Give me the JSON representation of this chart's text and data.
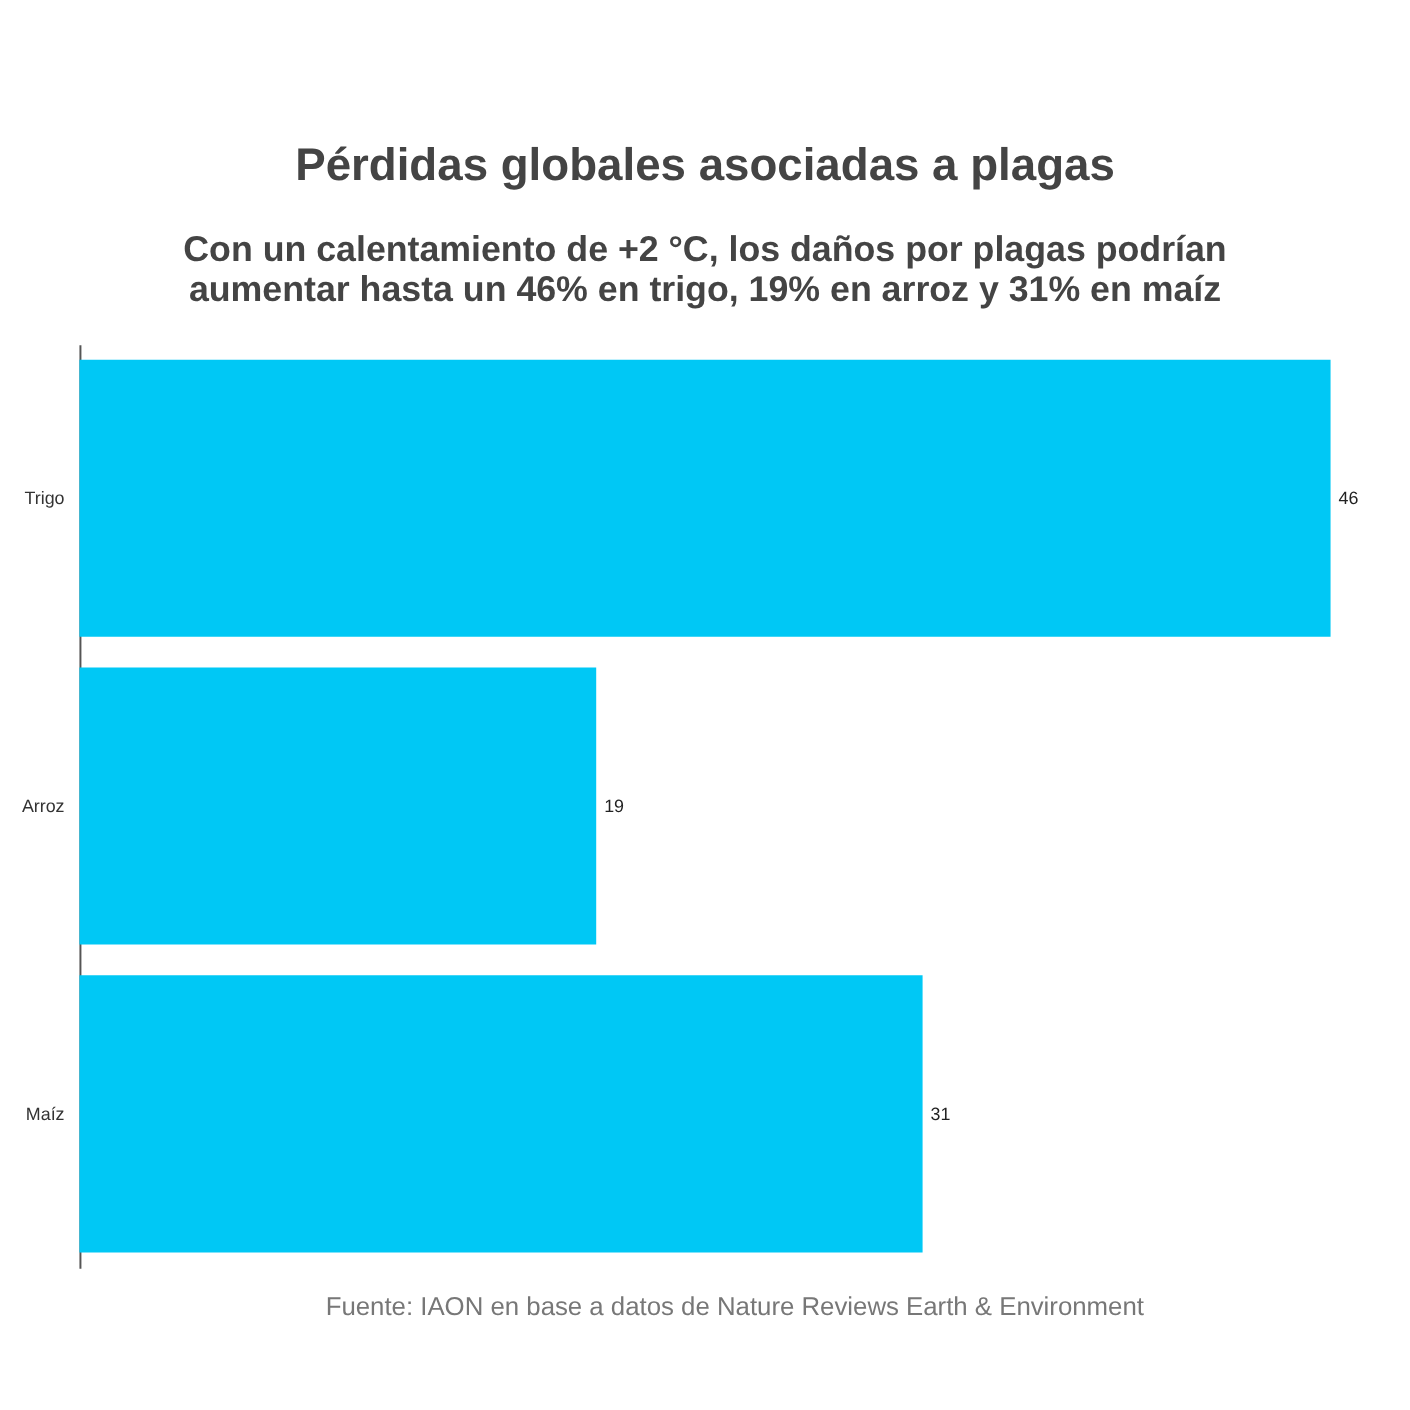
{
  "chart_data": {
    "type": "bar",
    "orientation": "horizontal",
    "title": "Pérdidas globales asociadas a plagas",
    "subtitle": "Con un calentamiento de +2 °C, los daños por plagas podrían aumentar hasta un 46% en trigo, 19% en arroz y 31% en maíz",
    "categories": [
      "Trigo",
      "Arroz",
      "Maíz"
    ],
    "values": [
      46,
      19,
      31
    ],
    "color": "#00c8f5",
    "data_labels": true,
    "annotations": [
      "Fuente: IAON en base a datos de Nature Reviews Earth & Environment"
    ]
  }
}
